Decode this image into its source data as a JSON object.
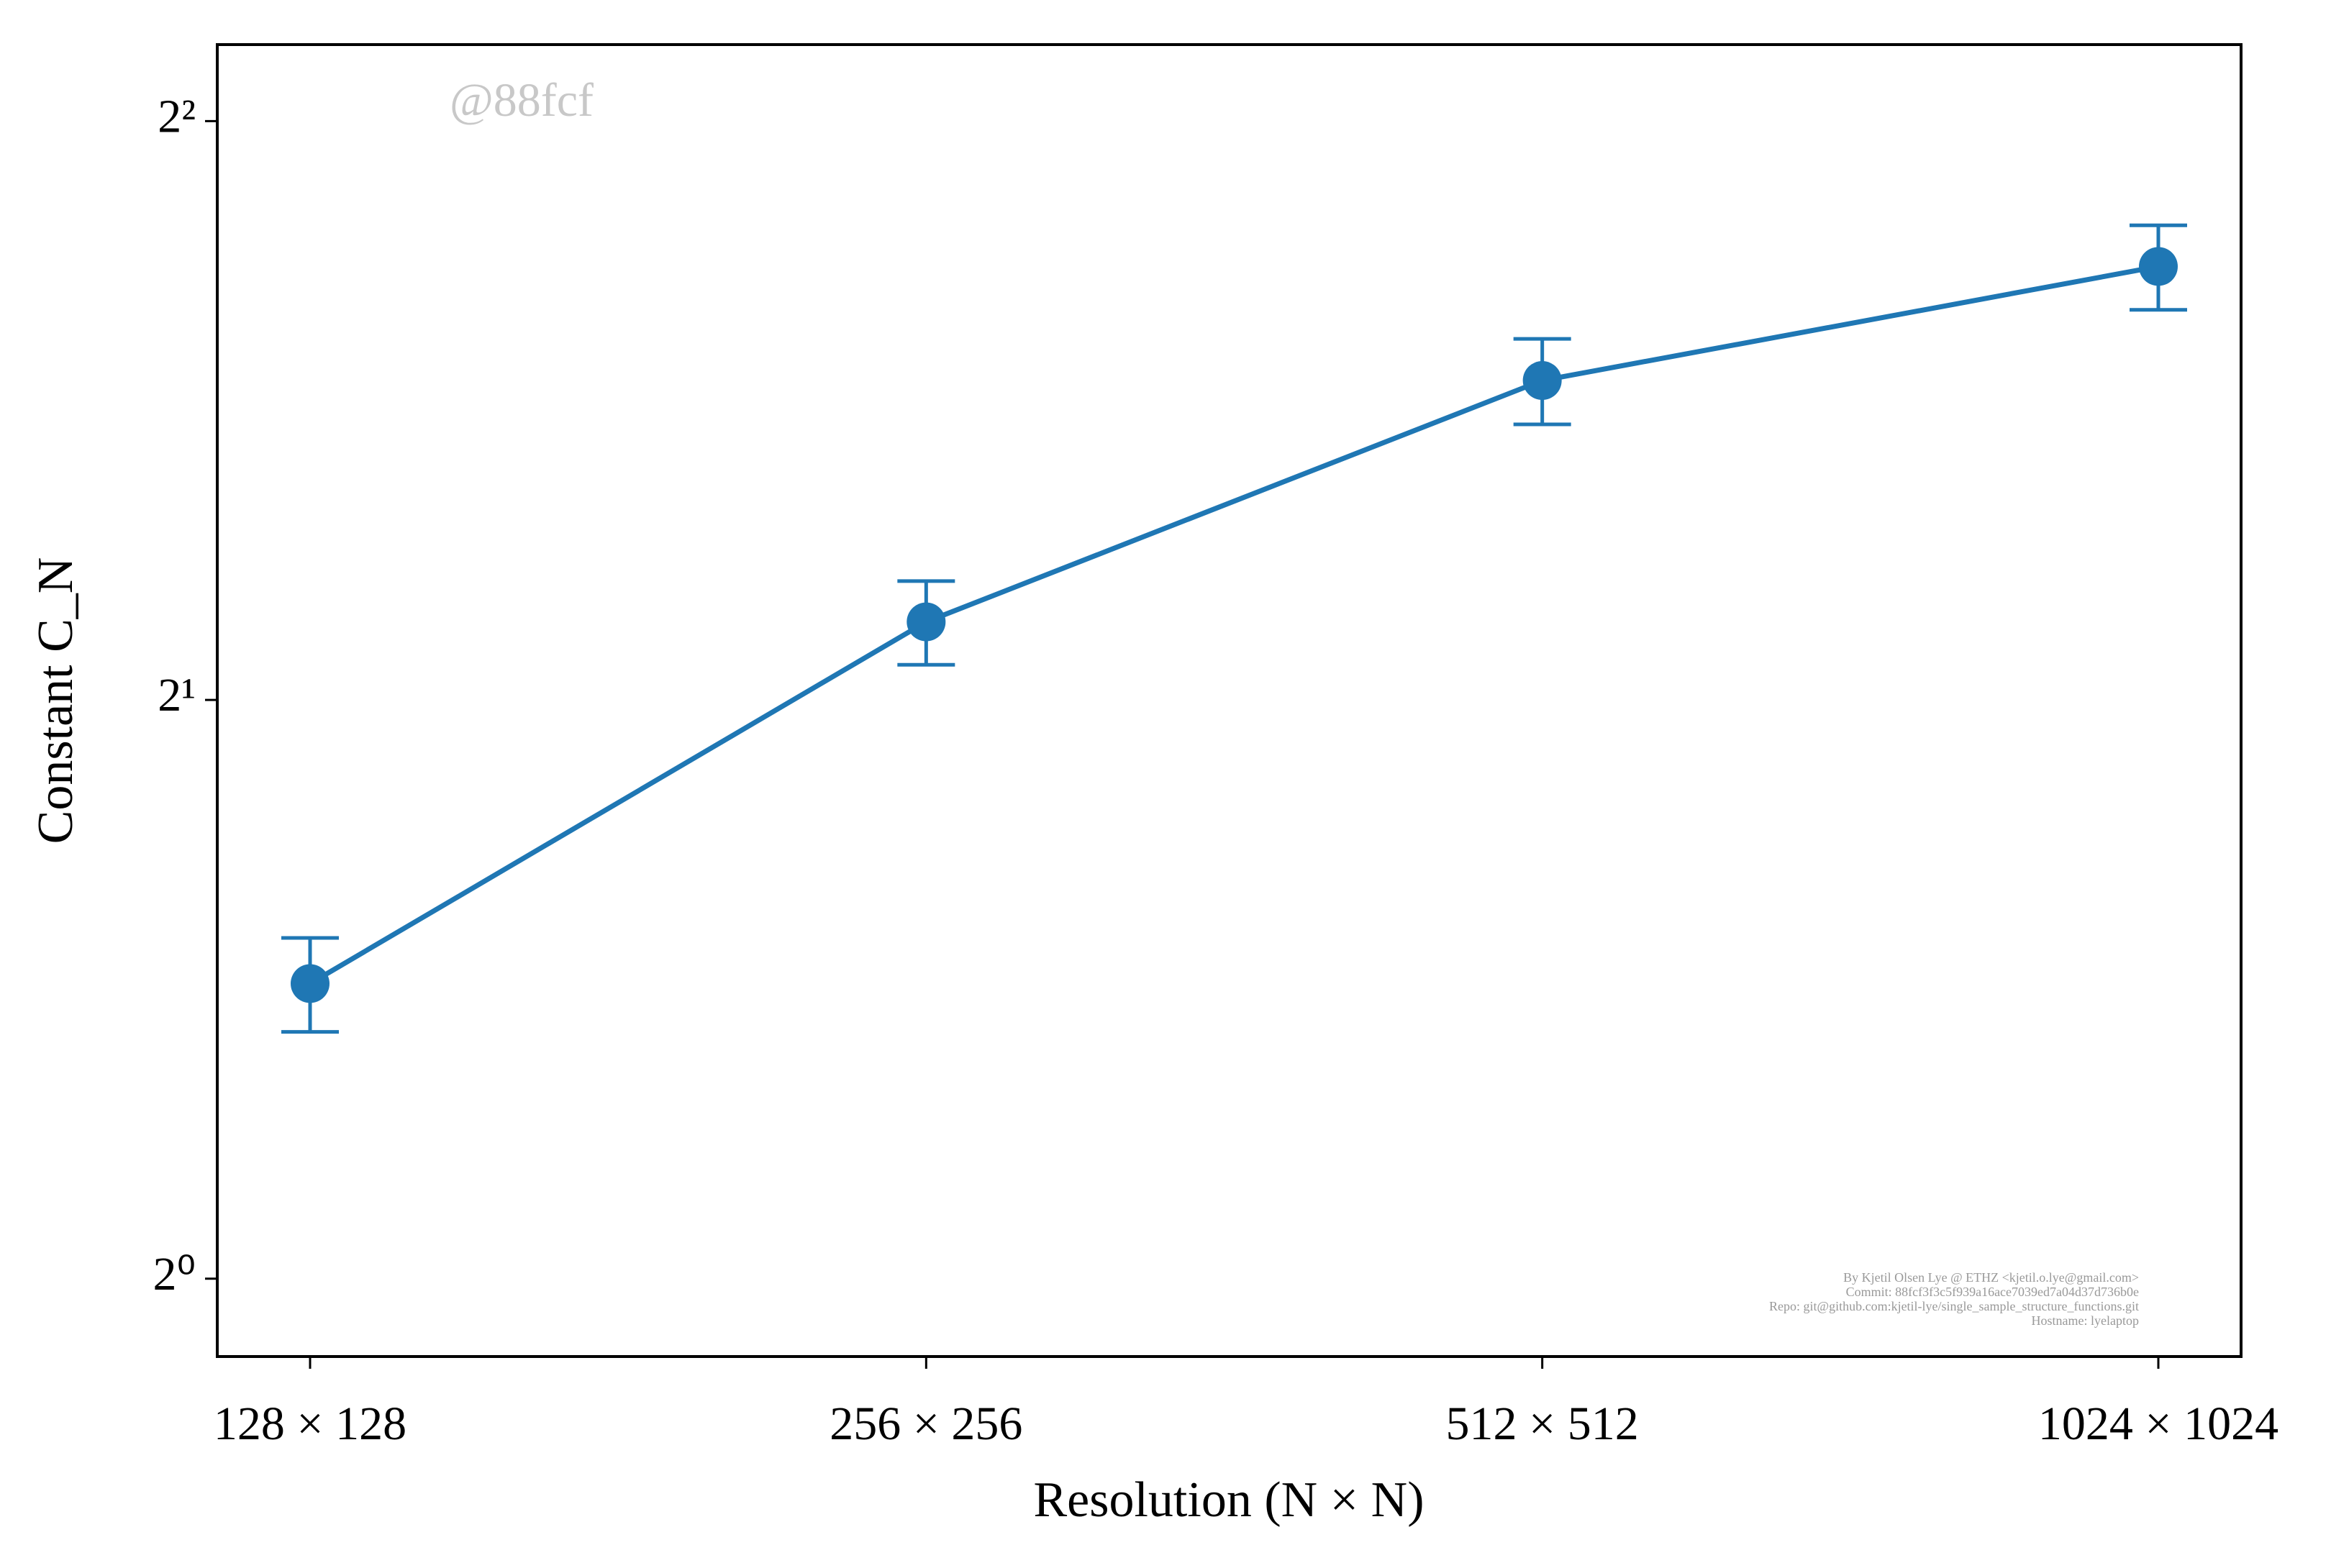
{
  "chart_data": {
    "type": "errorbar-line",
    "xlabel": "Resolution (N × N)",
    "ylabel": "Constant C_N",
    "categories": [
      "128 × 128",
      "256 × 256",
      "512 × 512",
      "1024 × 1024"
    ],
    "values": [
      1.424,
      2.196,
      2.932,
      3.361
    ],
    "errors": [
      0.08,
      0.11,
      0.15,
      0.17
    ],
    "color": "#1f77b4",
    "yscale": "log",
    "log_base": 2,
    "ylim": [
      0.911,
      4.384
    ],
    "yticks": [
      {
        "value": 1,
        "label": "2⁰"
      },
      {
        "value": 2,
        "label": "2¹"
      },
      {
        "value": 4,
        "label": "2²"
      }
    ],
    "watermark": "@88fcf",
    "footer": [
      "By Kjetil Olsen Lye @ ETHZ <kjetil.o.lye@gmail.com>",
      "Commit: 88fcf3f3c5f939a16ace7039ed7a04d37d736b0e",
      "Repo: git@github.com:kjetil-lye/single_sample_structure_functions.git",
      "Hostname: lyelaptop"
    ]
  }
}
